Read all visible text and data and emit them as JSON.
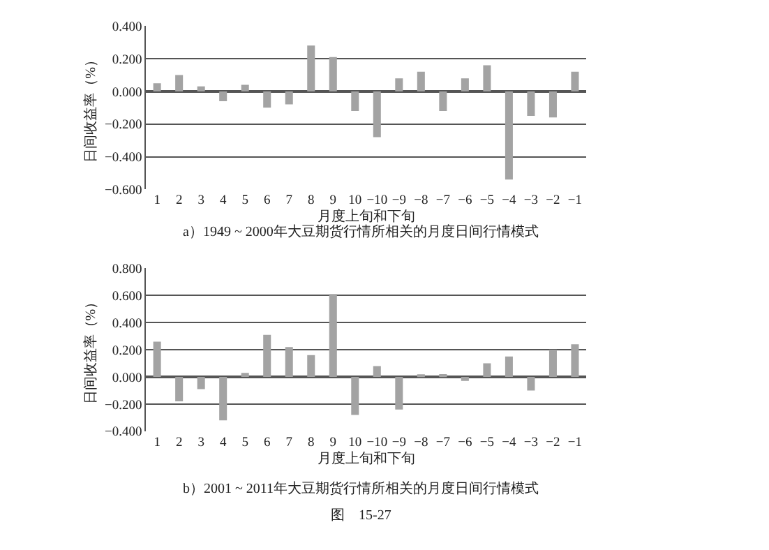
{
  "chart_data": [
    {
      "type": "bar",
      "xlabel": "月度上旬和下旬",
      "ylabel": "日间收益率（%）",
      "categories": [
        "1",
        "2",
        "3",
        "4",
        "5",
        "6",
        "7",
        "8",
        "9",
        "10",
        "−10",
        "−9",
        "−8",
        "−7",
        "−6",
        "−5",
        "−4",
        "−3",
        "−2",
        "−1"
      ],
      "values": [
        0.05,
        0.1,
        0.03,
        -0.06,
        0.04,
        -0.1,
        -0.08,
        0.28,
        0.21,
        -0.12,
        -0.28,
        0.08,
        0.12,
        -0.12,
        0.08,
        0.16,
        -0.54,
        -0.15,
        -0.16,
        0.12
      ],
      "color": "#a3a3a3",
      "ylim": [
        -0.6,
        0.4
      ],
      "yticks": [
        {
          "value": -0.6,
          "label": "−0.600"
        },
        {
          "value": -0.4,
          "label": "−0.400"
        },
        {
          "value": -0.2,
          "label": "−0.200"
        },
        {
          "value": 0,
          "label": "0.000"
        },
        {
          "value": 0.2,
          "label": "0.200"
        },
        {
          "value": 0.4,
          "label": "0.400"
        }
      ],
      "grid": "y",
      "annotations": [
        "a）1949 ~ 2000年大豆期货行情所相关的月度日间行情模式"
      ]
    },
    {
      "type": "bar",
      "xlabel": "月度上旬和下旬",
      "ylabel": "日间收益率（%）",
      "categories": [
        "1",
        "2",
        "3",
        "4",
        "5",
        "6",
        "7",
        "8",
        "9",
        "10",
        "−10",
        "−9",
        "−8",
        "−7",
        "−6",
        "−5",
        "−4",
        "−3",
        "−2",
        "−1"
      ],
      "values": [
        0.26,
        -0.18,
        -0.09,
        -0.32,
        0.03,
        0.31,
        0.22,
        0.16,
        0.61,
        -0.28,
        0.08,
        -0.24,
        0.01,
        0.02,
        -0.03,
        0.1,
        0.15,
        -0.1,
        0.2,
        0.24
      ],
      "color": "#a3a3a3",
      "ylim": [
        -0.4,
        0.8
      ],
      "yticks": [
        {
          "value": -0.4,
          "label": "−0.400"
        },
        {
          "value": -0.2,
          "label": "−0.200"
        },
        {
          "value": 0,
          "label": "0.000"
        },
        {
          "value": 0.2,
          "label": "0.200"
        },
        {
          "value": 0.4,
          "label": "0.400"
        },
        {
          "value": 0.6,
          "label": "0.600"
        },
        {
          "value": 0.8,
          "label": "0.800"
        }
      ],
      "grid": "y",
      "annotations": [
        "b）2001 ~ 2011年大豆期货行情所相关的月度日间行情模式",
        "图　15-27"
      ]
    }
  ]
}
